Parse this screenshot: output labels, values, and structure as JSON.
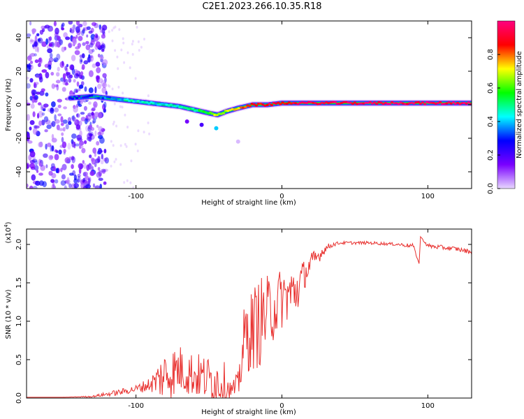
{
  "page_title": "C2E1.2023.266.10.35.R18",
  "chart_data": [
    {
      "type": "heatmap",
      "title": "C2E1.2023.266.10.35.R18",
      "xlabel": "Height of straight line (km)",
      "ylabel": "Frequency (Hz)",
      "xlim": [
        -175,
        130
      ],
      "ylim": [
        -50,
        50
      ],
      "x_ticks": [
        -100,
        0,
        100
      ],
      "x_tick_labels": [
        "-100",
        "0",
        "100"
      ],
      "y_ticks": [
        -40,
        -20,
        0,
        20,
        40
      ],
      "y_tick_labels": [
        "-40",
        "-20",
        "0",
        "20",
        "40"
      ],
      "colorbar": {
        "label": "Normalized spectral amplitude",
        "range": [
          0,
          1
        ],
        "ticks": [
          0.0,
          0.2,
          0.4,
          0.6,
          0.8
        ],
        "tick_labels": [
          "0.0",
          "0.2",
          "0.4",
          "0.6",
          "0.8"
        ],
        "colormap": [
          "#e8d8ff",
          "#7a00ff",
          "#0000ff",
          "#00ffff",
          "#00ff00",
          "#ffff00",
          "#ff0000",
          "#ff0080"
        ]
      },
      "ridge": {
        "x": [
          -145,
          -130,
          -120,
          -110,
          -100,
          -90,
          -80,
          -70,
          -60,
          -50,
          -44,
          -38,
          -30,
          -20,
          -10,
          0,
          10,
          30,
          60,
          90,
          130
        ],
        "y": [
          4,
          5,
          4,
          3,
          2,
          1,
          0,
          -1,
          -3,
          -5,
          -6,
          -4,
          -2,
          0,
          0,
          1,
          1,
          1,
          1,
          1,
          1
        ],
        "amplitude": [
          0.25,
          0.3,
          0.35,
          0.4,
          0.45,
          0.45,
          0.4,
          0.45,
          0.5,
          0.6,
          0.7,
          0.65,
          0.75,
          0.85,
          0.9,
          0.9,
          0.9,
          0.95,
          0.95,
          0.95,
          0.95
        ]
      },
      "grid": false
    },
    {
      "type": "line",
      "xlabel": "Height of straight line (km)",
      "ylabel": "SNR (10 * v/v)",
      "y_scale_note": "(x10^4)",
      "xlim": [
        -175,
        130
      ],
      "ylim": [
        0,
        2.2
      ],
      "x_ticks": [
        -100,
        0,
        100
      ],
      "x_tick_labels": [
        "-100",
        "0",
        "100"
      ],
      "y_ticks": [
        0.0,
        0.5,
        1.0,
        1.5,
        2.0
      ],
      "y_tick_labels": [
        "0.0",
        "0.5",
        "1.0",
        "1.5",
        "2.0"
      ],
      "series": [
        {
          "color": "#e8302e",
          "x": [
            -175,
            -150,
            -130,
            -120,
            -110,
            -100,
            -90,
            -80,
            -70,
            -60,
            -50,
            -40,
            -35,
            -30,
            -28,
            -25,
            -20,
            -15,
            -10,
            -5,
            0,
            5,
            10,
            15,
            20,
            25,
            30,
            35,
            40,
            50,
            60,
            70,
            80,
            90,
            94,
            95,
            100,
            110,
            120,
            130
          ],
          "y": [
            0.01,
            0.01,
            0.02,
            0.05,
            0.08,
            0.12,
            0.18,
            0.3,
            0.38,
            0.3,
            0.25,
            0.2,
            0.1,
            0.15,
            0.5,
            0.8,
            0.9,
            1.0,
            1.1,
            1.2,
            1.3,
            1.35,
            1.4,
            1.6,
            1.75,
            1.85,
            1.95,
            2.0,
            2.02,
            2.02,
            2.02,
            2.01,
            2.0,
            1.98,
            1.75,
            2.1,
            1.98,
            1.96,
            1.94,
            1.9
          ],
          "noise": [
            0,
            0,
            0.01,
            0.03,
            0.04,
            0.05,
            0.1,
            0.35,
            0.32,
            0.3,
            0.3,
            0.3,
            0.1,
            0.2,
            0.4,
            0.5,
            0.55,
            0.6,
            0.5,
            0.45,
            0.4,
            0.35,
            0.35,
            0.2,
            0.15,
            0.1,
            0.05,
            0.03,
            0.02,
            0.02,
            0.02,
            0.02,
            0.02,
            0.03,
            0,
            0,
            0.03,
            0.03,
            0.03,
            0.03
          ]
        }
      ],
      "grid": false
    }
  ]
}
